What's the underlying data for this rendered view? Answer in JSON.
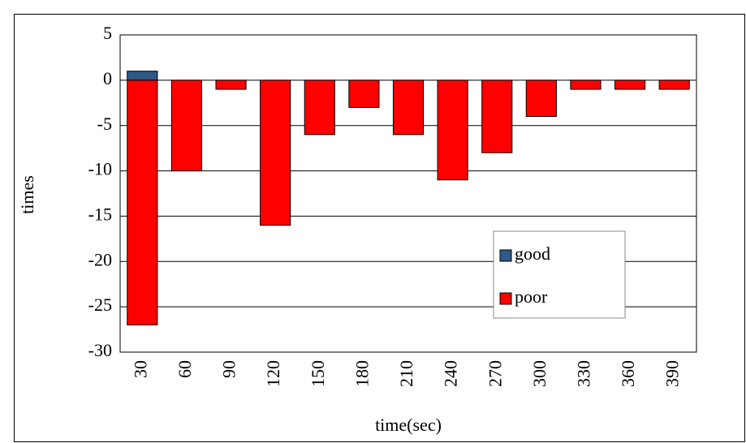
{
  "chart_data": {
    "type": "bar",
    "x_label": "time(sec)",
    "y_label": "times",
    "categories": [
      "30",
      "60",
      "90",
      "120",
      "150",
      "180",
      "210",
      "240",
      "270",
      "300",
      "330",
      "360",
      "390"
    ],
    "series": [
      {
        "name": "good",
        "color": "#2e5a87",
        "values": [
          1,
          0,
          0,
          0,
          0,
          0,
          0,
          0,
          0,
          0,
          0,
          0,
          0
        ]
      },
      {
        "name": "poor",
        "color": "#ff0000",
        "values": [
          -27,
          -10,
          -1,
          -16,
          -6,
          -3,
          -6,
          -11,
          -8,
          -4,
          -1,
          -1,
          -1
        ]
      }
    ],
    "ylim": [
      -30,
      5
    ],
    "yticks": [
      -30,
      -25,
      -20,
      -15,
      -10,
      -5,
      0,
      5
    ],
    "grid": true,
    "legend": "lower right"
  }
}
